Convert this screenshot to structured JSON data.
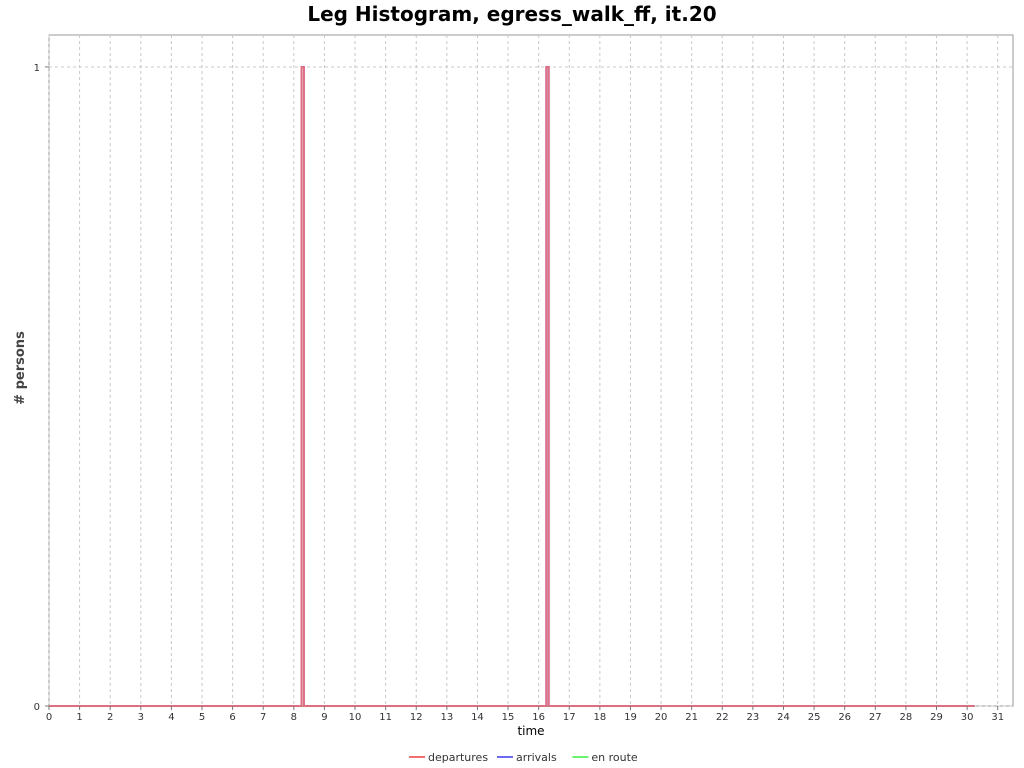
{
  "chart_data": {
    "type": "line",
    "title": "Leg Histogram, egress_walk_ff, it.20",
    "xlabel": "time",
    "ylabel": "# persons",
    "xlim": [
      0,
      31.5
    ],
    "ylim": [
      0,
      1.05
    ],
    "x_ticks": [
      0,
      1,
      2,
      3,
      4,
      5,
      6,
      7,
      8,
      9,
      10,
      11,
      12,
      13,
      14,
      15,
      16,
      17,
      18,
      19,
      20,
      21,
      22,
      23,
      24,
      25,
      26,
      27,
      28,
      29,
      30,
      31
    ],
    "y_ticks": [
      0,
      1
    ],
    "grid": true,
    "legend_position": "bottom",
    "series": [
      {
        "name": "departures",
        "color": "#f26d6d",
        "points": [
          [
            0,
            0
          ],
          [
            8.25,
            0
          ],
          [
            8.25,
            1
          ],
          [
            8.33,
            1
          ],
          [
            8.33,
            0
          ],
          [
            16.25,
            0
          ],
          [
            16.25,
            1
          ],
          [
            16.33,
            1
          ],
          [
            16.33,
            0
          ],
          [
            30.25,
            0
          ]
        ]
      },
      {
        "name": "arrivals",
        "color": "#6b6bf2",
        "points": [
          [
            0,
            0
          ],
          [
            8.25,
            0
          ],
          [
            8.25,
            1
          ],
          [
            8.33,
            1
          ],
          [
            8.33,
            0
          ],
          [
            16.25,
            0
          ],
          [
            16.25,
            1
          ],
          [
            16.33,
            1
          ],
          [
            16.33,
            0
          ],
          [
            30.25,
            0
          ]
        ]
      },
      {
        "name": "en route",
        "color": "#6cf26c",
        "points": [
          [
            0,
            0
          ],
          [
            30.25,
            0
          ]
        ]
      }
    ]
  }
}
